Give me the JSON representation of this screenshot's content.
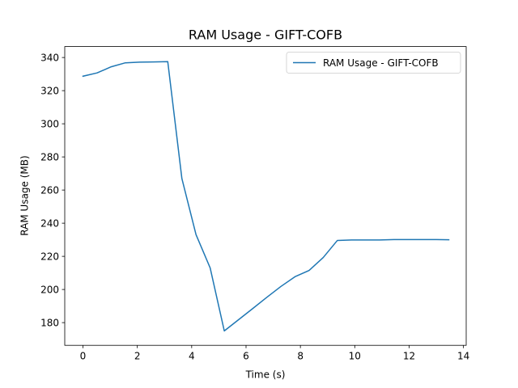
{
  "chart_data": {
    "type": "line",
    "title": "RAM Usage - GIFT-COFB",
    "xlabel": "Time (s)",
    "ylabel": "RAM Usage (MB)",
    "xlim": [
      -0.67,
      14.1
    ],
    "ylim": [
      166.3,
      346.6
    ],
    "xticks": [
      0,
      2,
      4,
      6,
      8,
      10,
      12,
      14
    ],
    "yticks": [
      180,
      200,
      220,
      240,
      260,
      280,
      300,
      320,
      340
    ],
    "grid": false,
    "legend_position": "upper-right",
    "series": [
      {
        "name": "RAM Usage - GIFT-COFB",
        "color": "#1f77b4",
        "x": [
          0.0,
          0.52,
          1.04,
          1.56,
          2.08,
          2.6,
          3.12,
          3.64,
          4.16,
          4.68,
          5.2,
          5.72,
          6.24,
          6.76,
          7.28,
          7.8,
          8.32,
          8.84,
          9.36,
          9.88,
          10.4,
          10.92,
          11.44,
          11.96,
          12.48,
          13.0,
          13.46
        ],
        "y": [
          328.7,
          330.7,
          334.4,
          336.8,
          337.2,
          337.3,
          337.5,
          266.9,
          233.1,
          213.0,
          175.0,
          181.7,
          188.4,
          195.2,
          201.8,
          207.7,
          211.5,
          219.3,
          229.6,
          229.9,
          229.9,
          229.9,
          230.1,
          230.1,
          230.1,
          230.1,
          230.0
        ]
      }
    ]
  }
}
